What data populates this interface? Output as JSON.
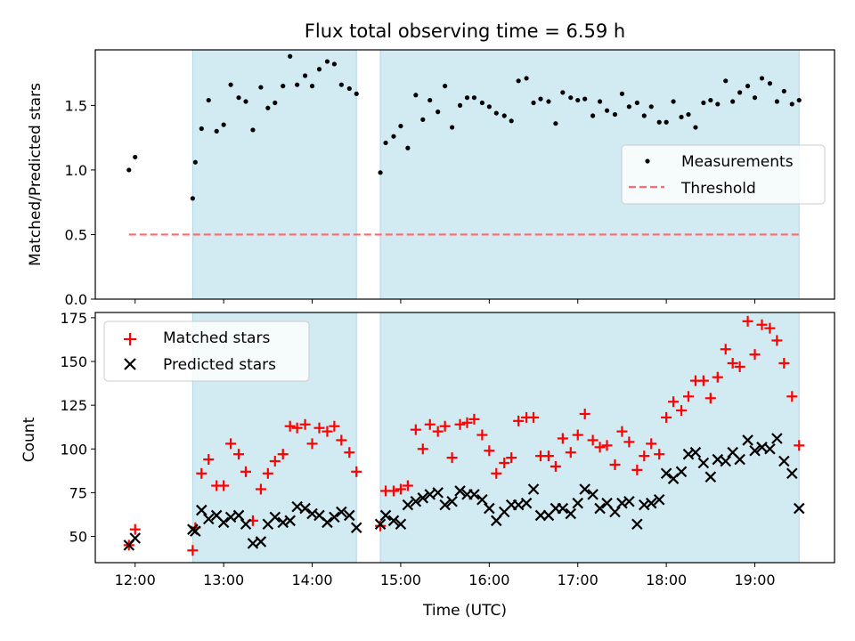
{
  "title": "Flux total observing time = 6.59 h",
  "xlabel": "Time (UTC)",
  "colors": {
    "shade": "#add8e6",
    "measurements": "#000000",
    "threshold": "#ff6b6b",
    "matched": "#ff0000",
    "predicted": "#000000"
  },
  "chart_data": [
    {
      "type": "scatter",
      "ylabel": "Matched/Predicted stars",
      "xlim_hours": [
        11.55,
        19.9
      ],
      "ylim": [
        0,
        1.93
      ],
      "xticks": [
        "12:00",
        "13:00",
        "14:00",
        "15:00",
        "16:00",
        "17:00",
        "18:00",
        "19:00"
      ],
      "yticks": [
        "0.0",
        "0.5",
        "1.0",
        "1.5"
      ],
      "shaded_intervals": [
        [
          12.65,
          14.5
        ],
        [
          14.77,
          19.5
        ]
      ],
      "legend": {
        "position": "center-right",
        "items": [
          "Measurements",
          "Threshold"
        ]
      },
      "threshold": {
        "name": "Threshold",
        "y": 0.5,
        "x_range": [
          11.93,
          19.5
        ]
      },
      "series": [
        {
          "name": "Measurements",
          "marker": "dot",
          "points": [
            [
              11.93,
              1.0
            ],
            [
              12.0,
              1.1
            ],
            [
              12.65,
              0.78
            ],
            [
              12.68,
              1.06
            ],
            [
              12.75,
              1.32
            ],
            [
              12.83,
              1.54
            ],
            [
              12.92,
              1.3
            ],
            [
              13.0,
              1.35
            ],
            [
              13.08,
              1.66
            ],
            [
              13.17,
              1.56
            ],
            [
              13.25,
              1.53
            ],
            [
              13.33,
              1.31
            ],
            [
              13.42,
              1.64
            ],
            [
              13.5,
              1.48
            ],
            [
              13.58,
              1.52
            ],
            [
              13.67,
              1.65
            ],
            [
              13.75,
              1.88
            ],
            [
              13.83,
              1.66
            ],
            [
              13.92,
              1.73
            ],
            [
              14.0,
              1.65
            ],
            [
              14.08,
              1.78
            ],
            [
              14.17,
              1.84
            ],
            [
              14.25,
              1.82
            ],
            [
              14.33,
              1.66
            ],
            [
              14.42,
              1.63
            ],
            [
              14.5,
              1.59
            ],
            [
              14.77,
              0.98
            ],
            [
              14.83,
              1.21
            ],
            [
              14.92,
              1.26
            ],
            [
              15.0,
              1.34
            ],
            [
              15.08,
              1.17
            ],
            [
              15.17,
              1.58
            ],
            [
              15.25,
              1.39
            ],
            [
              15.33,
              1.54
            ],
            [
              15.42,
              1.45
            ],
            [
              15.5,
              1.65
            ],
            [
              15.58,
              1.33
            ],
            [
              15.67,
              1.5
            ],
            [
              15.75,
              1.56
            ],
            [
              15.83,
              1.56
            ],
            [
              15.92,
              1.52
            ],
            [
              16.0,
              1.49
            ],
            [
              16.08,
              1.44
            ],
            [
              16.17,
              1.42
            ],
            [
              16.25,
              1.38
            ],
            [
              16.33,
              1.69
            ],
            [
              16.42,
              1.71
            ],
            [
              16.5,
              1.52
            ],
            [
              16.58,
              1.55
            ],
            [
              16.67,
              1.53
            ],
            [
              16.75,
              1.36
            ],
            [
              16.83,
              1.6
            ],
            [
              16.92,
              1.56
            ],
            [
              17.0,
              1.54
            ],
            [
              17.08,
              1.55
            ],
            [
              17.17,
              1.42
            ],
            [
              17.25,
              1.53
            ],
            [
              17.33,
              1.46
            ],
            [
              17.42,
              1.43
            ],
            [
              17.5,
              1.59
            ],
            [
              17.58,
              1.49
            ],
            [
              17.67,
              1.52
            ],
            [
              17.75,
              1.42
            ],
            [
              17.83,
              1.49
            ],
            [
              17.92,
              1.37
            ],
            [
              18.0,
              1.37
            ],
            [
              18.08,
              1.53
            ],
            [
              18.17,
              1.41
            ],
            [
              18.25,
              1.43
            ],
            [
              18.33,
              1.33
            ],
            [
              18.42,
              1.52
            ],
            [
              18.5,
              1.54
            ],
            [
              18.58,
              1.51
            ],
            [
              18.67,
              1.69
            ],
            [
              18.75,
              1.53
            ],
            [
              18.83,
              1.6
            ],
            [
              18.92,
              1.65
            ],
            [
              19.0,
              1.56
            ],
            [
              19.08,
              1.71
            ],
            [
              19.17,
              1.67
            ],
            [
              19.25,
              1.53
            ],
            [
              19.33,
              1.61
            ],
            [
              19.42,
              1.51
            ],
            [
              19.5,
              1.54
            ]
          ]
        }
      ]
    },
    {
      "type": "scatter",
      "ylabel": "Count",
      "xlim_hours": [
        11.55,
        19.9
      ],
      "ylim": [
        35,
        178
      ],
      "xticks": [
        "12:00",
        "13:00",
        "14:00",
        "15:00",
        "16:00",
        "17:00",
        "18:00",
        "19:00"
      ],
      "yticks": [
        "50",
        "75",
        "100",
        "125",
        "150",
        "175"
      ],
      "shaded_intervals": [
        [
          12.65,
          14.5
        ],
        [
          14.77,
          19.5
        ]
      ],
      "legend": {
        "position": "upper-left",
        "items": [
          "Matched stars",
          "Predicted stars"
        ]
      },
      "series": [
        {
          "name": "Matched stars",
          "marker": "plus",
          "points": [
            [
              11.93,
              45
            ],
            [
              12.0,
              54
            ],
            [
              12.65,
              42
            ],
            [
              12.68,
              55
            ],
            [
              12.75,
              86
            ],
            [
              12.83,
              94
            ],
            [
              12.92,
              79
            ],
            [
              13.0,
              79
            ],
            [
              13.08,
              103
            ],
            [
              13.17,
              97
            ],
            [
              13.25,
              87
            ],
            [
              13.33,
              59
            ],
            [
              13.42,
              77
            ],
            [
              13.5,
              86
            ],
            [
              13.58,
              93
            ],
            [
              13.67,
              97
            ],
            [
              13.75,
              113
            ],
            [
              13.83,
              112
            ],
            [
              13.92,
              114
            ],
            [
              14.0,
              103
            ],
            [
              14.08,
              112
            ],
            [
              14.17,
              110
            ],
            [
              14.25,
              113
            ],
            [
              14.33,
              105
            ],
            [
              14.42,
              98
            ],
            [
              14.5,
              87
            ],
            [
              14.77,
              56
            ],
            [
              14.83,
              76
            ],
            [
              14.92,
              76
            ],
            [
              15.0,
              77
            ],
            [
              15.08,
              79
            ],
            [
              15.17,
              111
            ],
            [
              15.25,
              100
            ],
            [
              15.33,
              114
            ],
            [
              15.42,
              110
            ],
            [
              15.5,
              113
            ],
            [
              15.58,
              95
            ],
            [
              15.67,
              114
            ],
            [
              15.75,
              115
            ],
            [
              15.83,
              117
            ],
            [
              15.92,
              108
            ],
            [
              16.0,
              99
            ],
            [
              16.08,
              86
            ],
            [
              16.17,
              92
            ],
            [
              16.25,
              95
            ],
            [
              16.33,
              116
            ],
            [
              16.42,
              118
            ],
            [
              16.5,
              118
            ],
            [
              16.58,
              96
            ],
            [
              16.67,
              96
            ],
            [
              16.75,
              90
            ],
            [
              16.83,
              106
            ],
            [
              16.92,
              98
            ],
            [
              17.0,
              108
            ],
            [
              17.08,
              120
            ],
            [
              17.17,
              105
            ],
            [
              17.25,
              101
            ],
            [
              17.33,
              102
            ],
            [
              17.42,
              91
            ],
            [
              17.5,
              110
            ],
            [
              17.58,
              104
            ],
            [
              17.67,
              88
            ],
            [
              17.75,
              96
            ],
            [
              17.83,
              103
            ],
            [
              17.92,
              97
            ],
            [
              18.0,
              118
            ],
            [
              18.08,
              127
            ],
            [
              18.17,
              122
            ],
            [
              18.25,
              130
            ],
            [
              18.33,
              139
            ],
            [
              18.42,
              139
            ],
            [
              18.5,
              129
            ],
            [
              18.58,
              141
            ],
            [
              18.67,
              157
            ],
            [
              18.75,
              149
            ],
            [
              18.83,
              147
            ],
            [
              18.92,
              173
            ],
            [
              19.0,
              154
            ],
            [
              19.08,
              171
            ],
            [
              19.17,
              169
            ],
            [
              19.25,
              162
            ],
            [
              19.33,
              149
            ],
            [
              19.42,
              130
            ],
            [
              19.5,
              102
            ]
          ]
        },
        {
          "name": "Predicted stars",
          "marker": "x",
          "points": [
            [
              11.93,
              45
            ],
            [
              12.0,
              49
            ],
            [
              12.65,
              54
            ],
            [
              12.68,
              53
            ],
            [
              12.75,
              65
            ],
            [
              12.83,
              60
            ],
            [
              12.92,
              62
            ],
            [
              13.0,
              58
            ],
            [
              13.08,
              61
            ],
            [
              13.17,
              62
            ],
            [
              13.25,
              57
            ],
            [
              13.33,
              46
            ],
            [
              13.42,
              47
            ],
            [
              13.5,
              57
            ],
            [
              13.58,
              61
            ],
            [
              13.67,
              58
            ],
            [
              13.75,
              59
            ],
            [
              13.83,
              67
            ],
            [
              13.92,
              66
            ],
            [
              14.0,
              63
            ],
            [
              14.08,
              62
            ],
            [
              14.17,
              58
            ],
            [
              14.25,
              61
            ],
            [
              14.33,
              64
            ],
            [
              14.42,
              62
            ],
            [
              14.5,
              55
            ],
            [
              14.77,
              57
            ],
            [
              14.83,
              62
            ],
            [
              14.92,
              59
            ],
            [
              15.0,
              57
            ],
            [
              15.08,
              68
            ],
            [
              15.17,
              70
            ],
            [
              15.25,
              72
            ],
            [
              15.33,
              74
            ],
            [
              15.42,
              75
            ],
            [
              15.5,
              68
            ],
            [
              15.58,
              70
            ],
            [
              15.67,
              76
            ],
            [
              15.75,
              74
            ],
            [
              15.83,
              74
            ],
            [
              15.92,
              71
            ],
            [
              16.0,
              66
            ],
            [
              16.08,
              59
            ],
            [
              16.17,
              64
            ],
            [
              16.25,
              68
            ],
            [
              16.33,
              68
            ],
            [
              16.42,
              69
            ],
            [
              16.5,
              77
            ],
            [
              16.58,
              62
            ],
            [
              16.67,
              62
            ],
            [
              16.75,
              66
            ],
            [
              16.83,
              66
            ],
            [
              16.92,
              63
            ],
            [
              17.0,
              69
            ],
            [
              17.08,
              77
            ],
            [
              17.17,
              74
            ],
            [
              17.25,
              66
            ],
            [
              17.33,
              69
            ],
            [
              17.42,
              64
            ],
            [
              17.5,
              69
            ],
            [
              17.58,
              70
            ],
            [
              17.67,
              57
            ],
            [
              17.75,
              68
            ],
            [
              17.83,
              69
            ],
            [
              17.92,
              71
            ],
            [
              18.0,
              86
            ],
            [
              18.08,
              83
            ],
            [
              18.17,
              87
            ],
            [
              18.25,
              97
            ],
            [
              18.33,
              98
            ],
            [
              18.42,
              92
            ],
            [
              18.5,
              84
            ],
            [
              18.58,
              94
            ],
            [
              18.67,
              93
            ],
            [
              18.75,
              98
            ],
            [
              18.83,
              94
            ],
            [
              18.92,
              105
            ],
            [
              19.0,
              99
            ],
            [
              19.08,
              101
            ],
            [
              19.17,
              100
            ],
            [
              19.25,
              106
            ],
            [
              19.33,
              93
            ],
            [
              19.42,
              86
            ],
            [
              19.5,
              66
            ]
          ]
        }
      ]
    }
  ]
}
